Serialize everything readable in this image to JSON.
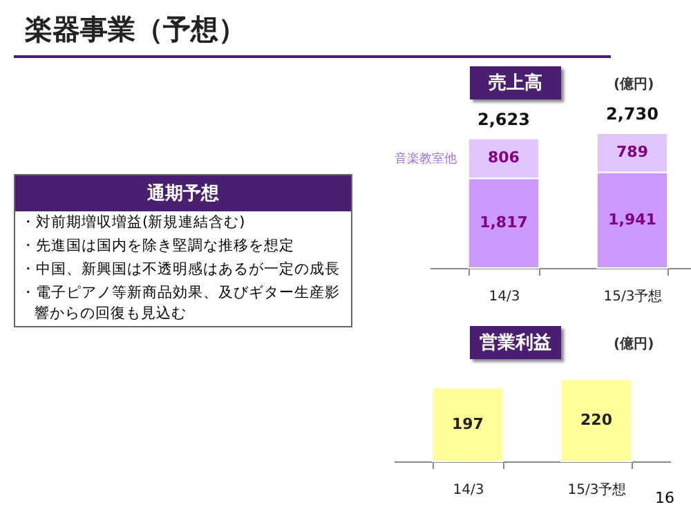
{
  "chart_data": [
    {
      "type": "other",
      "title": "楽器事業（予想）",
      "subtitle": "通期予想",
      "annotations": [
        "・対前期増収増益(新規連結含む)",
        "・先進国は国内を除き堅調な推移を想定",
        "・中国、新興国は不透明感はあるが一定の成長",
        "・電子ピアノ等新商品効果、及びギター生産影響からの回復も見込む",
        "16"
      ]
    },
    {
      "type": "bar",
      "title": "売上高",
      "ylabel": "(億円)",
      "categories": [
        "14/3",
        "15/3予想"
      ],
      "stacked": true,
      "data_labels": true,
      "totals": [
        "2,623",
        "2,730"
      ],
      "series": [
        {
          "color": "#cc99ff",
          "values": [
            1817,
            1941
          ],
          "value_labels": [
            "1,817",
            "1,941"
          ]
        },
        {
          "name": "音楽教室他",
          "color": "#dfc6ff",
          "values": [
            806,
            789
          ],
          "value_labels": [
            "806",
            "789"
          ]
        }
      ]
    },
    {
      "type": "bar",
      "title": "営業利益",
      "ylabel": "(億円)",
      "categories": [
        "14/3",
        "15/3予想"
      ],
      "data_labels": true,
      "series": [
        {
          "color": "#ffff99",
          "values": [
            197,
            220
          ]
        }
      ]
    }
  ]
}
